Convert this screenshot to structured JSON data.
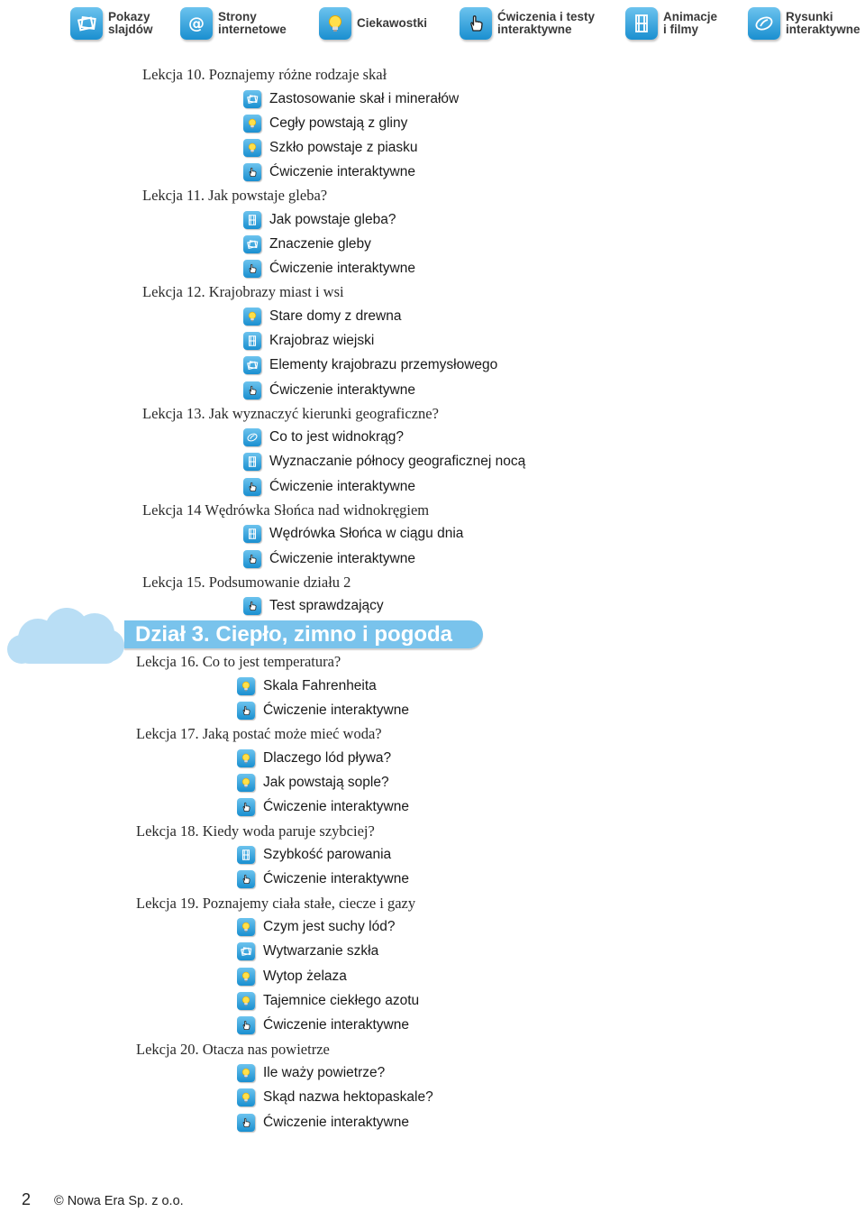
{
  "legend": [
    {
      "label": "Pokazy\nslajdów",
      "icon": "slides-icon"
    },
    {
      "label": "Strony\ninternetowe",
      "icon": "at-icon"
    },
    {
      "label": "Ciekawostki",
      "icon": "bulb-icon"
    },
    {
      "label": "Ćwiczenia i testy\ninteraktywne",
      "icon": "hand-icon"
    },
    {
      "label": "Animacje\ni filmy",
      "icon": "film-icon"
    },
    {
      "label": "Rysunki\ninteraktywne",
      "icon": "drawing-icon"
    }
  ],
  "lessons": [
    {
      "title": "Lekcja 10. Poznajemy różne rodzaje skał",
      "items": [
        {
          "icon": "slides-icon",
          "label": "Zastosowanie skał i minerałów"
        },
        {
          "icon": "bulb-icon",
          "label": "Cegły powstają z gliny"
        },
        {
          "icon": "bulb-icon",
          "label": "Szkło powstaje z piasku"
        },
        {
          "icon": "hand-icon",
          "label": "Ćwiczenie interaktywne"
        }
      ]
    },
    {
      "title": "Lekcja 11. Jak powstaje gleba?",
      "items": [
        {
          "icon": "film-icon",
          "label": "Jak powstaje gleba?"
        },
        {
          "icon": "slides-icon",
          "label": "Znaczenie gleby"
        },
        {
          "icon": "hand-icon",
          "label": "Ćwiczenie interaktywne"
        }
      ]
    },
    {
      "title": "Lekcja 12. Krajobrazy miast i wsi",
      "items": [
        {
          "icon": "bulb-icon",
          "label": "Stare domy z drewna"
        },
        {
          "icon": "film-icon",
          "label": "Krajobraz wiejski"
        },
        {
          "icon": "slides-icon",
          "label": "Elementy krajobrazu przemysłowego"
        },
        {
          "icon": "hand-icon",
          "label": "Ćwiczenie interaktywne"
        }
      ]
    },
    {
      "title": "Lekcja 13. Jak wyznaczyć kierunki geograficzne?",
      "items": [
        {
          "icon": "drawing-icon",
          "label": "Co to jest widnokrąg?"
        },
        {
          "icon": "film-icon",
          "label": "Wyznaczanie północy geograficznej nocą"
        },
        {
          "icon": "hand-icon",
          "label": "Ćwiczenie interaktywne"
        }
      ]
    },
    {
      "title": "Lekcja 14 Wędrówka Słońca nad widnokręgiem",
      "items": [
        {
          "icon": "film-icon",
          "label": "Wędrówka Słońca w ciągu dnia"
        },
        {
          "icon": "hand-icon",
          "label": "Ćwiczenie interaktywne"
        }
      ]
    },
    {
      "title": "Lekcja 15. Podsumowanie działu 2",
      "items": [
        {
          "icon": "hand-icon",
          "label": "Test sprawdzający"
        }
      ]
    }
  ],
  "section": {
    "title": "Dział 3. Ciepło, zimno i pogoda"
  },
  "lessons2": [
    {
      "title": "Lekcja 16. Co to jest temperatura?",
      "items": [
        {
          "icon": "bulb-icon",
          "label": "Skala Fahrenheita"
        },
        {
          "icon": "hand-icon",
          "label": "Ćwiczenie interaktywne"
        }
      ]
    },
    {
      "title": "Lekcja 17. Jaką postać może mieć woda?",
      "items": [
        {
          "icon": "bulb-icon",
          "label": "Dlaczego lód pływa?"
        },
        {
          "icon": "bulb-icon",
          "label": "Jak powstają sople?"
        },
        {
          "icon": "hand-icon",
          "label": "Ćwiczenie interaktywne"
        }
      ]
    },
    {
      "title": "Lekcja 18. Kiedy woda paruje szybciej?",
      "items": [
        {
          "icon": "film-icon",
          "label": "Szybkość parowania"
        },
        {
          "icon": "hand-icon",
          "label": "Ćwiczenie interaktywne"
        }
      ]
    },
    {
      "title": "Lekcja 19. Poznajemy ciała stałe, ciecze i gazy",
      "items": [
        {
          "icon": "bulb-icon",
          "label": "Czym jest suchy lód?"
        },
        {
          "icon": "slides-icon",
          "label": "Wytwarzanie szkła"
        },
        {
          "icon": "bulb-icon",
          "label": "Wytop żelaza"
        },
        {
          "icon": "bulb-icon",
          "label": "Tajemnice ciekłego azotu"
        },
        {
          "icon": "hand-icon",
          "label": "Ćwiczenie interaktywne"
        }
      ]
    },
    {
      "title": "Lekcja 20. Otacza nas powietrze",
      "items": [
        {
          "icon": "bulb-icon",
          "label": "Ile waży powietrze?"
        },
        {
          "icon": "bulb-icon",
          "label": "Skąd nazwa hektopaskale?"
        },
        {
          "icon": "hand-icon",
          "label": "Ćwiczenie interaktywne"
        }
      ]
    }
  ],
  "footer": {
    "page": "2",
    "copyright": "© Nowa Era Sp. z o.o."
  }
}
